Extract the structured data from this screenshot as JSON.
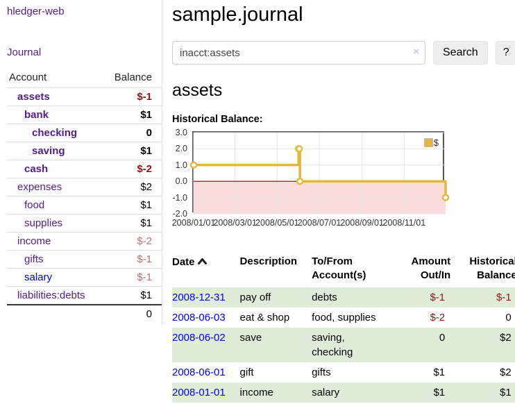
{
  "sidebar": {
    "app_title": "hledger-web",
    "journal_link": "Journal",
    "accounts_table": {
      "header_account": "Account",
      "header_balance": "Balance",
      "rows": [
        {
          "name": "assets",
          "balance": "$-1",
          "depth": 1,
          "bold": true,
          "neg": "strong"
        },
        {
          "name": "bank",
          "balance": "$1",
          "depth": 2,
          "bold": true,
          "neg": ""
        },
        {
          "name": "checking",
          "balance": "0",
          "depth": 3,
          "bold": true,
          "neg": ""
        },
        {
          "name": "saving",
          "balance": "$1",
          "depth": 3,
          "bold": true,
          "neg": ""
        },
        {
          "name": "cash",
          "balance": "$-2",
          "depth": 2,
          "bold": true,
          "neg": "strong"
        },
        {
          "name": "expenses",
          "balance": "$2",
          "depth": 1,
          "bold": false,
          "neg": ""
        },
        {
          "name": "food",
          "balance": "$1",
          "depth": 2,
          "bold": false,
          "neg": ""
        },
        {
          "name": "supplies",
          "balance": "$1",
          "depth": 2,
          "bold": false,
          "neg": ""
        },
        {
          "name": "income",
          "balance": "$-2",
          "depth": 1,
          "bold": false,
          "neg": "pale"
        },
        {
          "name": "gifts",
          "balance": "$-1",
          "depth": 2,
          "bold": false,
          "neg": "pale"
        },
        {
          "name": "salary",
          "balance": "$-1",
          "depth": 2,
          "bold": false,
          "neg": "pale",
          "blue_link": true
        },
        {
          "name": "liabilities:debts",
          "balance": "$1",
          "depth": 1,
          "bold": false,
          "neg": ""
        }
      ],
      "total": "0"
    }
  },
  "main": {
    "title": "sample.journal",
    "search": {
      "value": "inacct:assets",
      "clear_icon": "×",
      "button_label": "Search",
      "help_label": "?"
    },
    "section_heading": "assets",
    "chart_label": "Historical Balance:"
  },
  "chart_data": {
    "type": "line",
    "title": "Historical Balance",
    "series": [
      {
        "name": "$",
        "color": "#e7b63d",
        "step": true,
        "points": [
          [
            "2008-01-01",
            1
          ],
          [
            "2008-06-01",
            2
          ],
          [
            "2008-06-02",
            2
          ],
          [
            "2008-06-03",
            0
          ],
          [
            "2008-12-31",
            -1
          ]
        ]
      }
    ],
    "x_range": [
      "2008-01-01",
      "2008-12-31"
    ],
    "ylim": [
      -2,
      3
    ],
    "y_ticks": [
      3.0,
      2.0,
      1.0,
      0.0,
      -1.0,
      -2.0
    ],
    "x_ticks": [
      "2008/01/01",
      "2008/03/01",
      "2008/05/01",
      "2008/07/01",
      "2008/09/01",
      "2008/11/01"
    ],
    "grid": true,
    "zero_line_color": "#8b0000",
    "negative_region_color": "#fbdcdc",
    "border_color": "#555",
    "legend": {
      "label": "$",
      "position": "top-right"
    }
  },
  "transactions": {
    "headers": {
      "date": "Date",
      "description": "Description",
      "tofrom_line1": "To/From",
      "tofrom_line2": "Account(s)",
      "amount_line1": "Amount",
      "amount_line2": "Out/In",
      "balance_line1": "Historical",
      "balance_line2": "Balance"
    },
    "rows": [
      {
        "date": "2008-12-31",
        "description": "pay off",
        "accounts": "debts",
        "amount": "$-1",
        "amount_neg": true,
        "balance": "$-1",
        "balance_neg": true
      },
      {
        "date": "2008-06-03",
        "description": "eat & shop",
        "accounts": "food, supplies",
        "amount": "$-2",
        "amount_neg": true,
        "balance": "0",
        "balance_neg": false
      },
      {
        "date": "2008-06-02",
        "description": "save",
        "accounts": "saving, checking",
        "amount": "0",
        "amount_neg": false,
        "balance": "$2",
        "balance_neg": false
      },
      {
        "date": "2008-06-01",
        "description": "gift",
        "accounts": "gifts",
        "amount": "$1",
        "amount_neg": false,
        "balance": "$2",
        "balance_neg": false
      },
      {
        "date": "2008-01-01",
        "description": "income",
        "accounts": "salary",
        "amount": "$1",
        "amount_neg": false,
        "balance": "$1",
        "balance_neg": false
      }
    ]
  }
}
